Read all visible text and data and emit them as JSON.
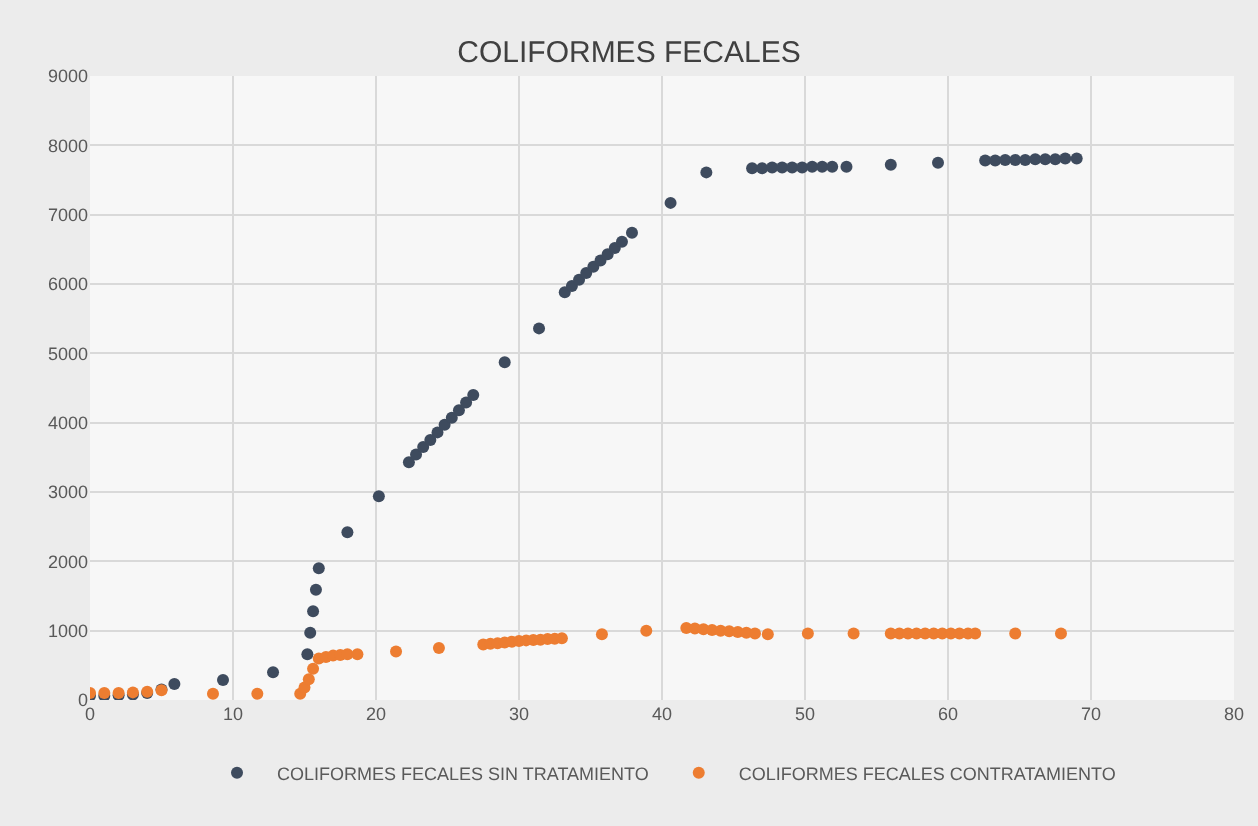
{
  "chart_data": {
    "type": "scatter",
    "title": "COLIFORMES FECALES",
    "xlim": [
      0,
      80
    ],
    "xticks": [
      0,
      10,
      20,
      30,
      40,
      50,
      60,
      70,
      80
    ],
    "ylim": [
      0,
      9000
    ],
    "yticks": [
      0,
      1000,
      2000,
      3000,
      4000,
      5000,
      6000,
      7000,
      8000,
      9000
    ],
    "grid": true,
    "legend": "bottom",
    "marker": "circle",
    "series": [
      {
        "name": "COLIFORMES FECALES SIN TRATAMIENTO",
        "color": "#3e4b5e",
        "x": [
          0,
          1,
          2,
          3,
          4,
          5,
          5.9,
          9.3,
          12.8,
          15.2,
          15.4,
          15.6,
          15.8,
          16,
          18,
          20.2,
          22.3,
          22.8,
          23.3,
          23.8,
          24.3,
          24.8,
          25.3,
          25.8,
          26.3,
          26.8,
          29,
          31.4,
          33.2,
          33.7,
          34.2,
          34.7,
          35.2,
          35.7,
          36.2,
          36.7,
          37.2,
          37.9,
          40.6,
          43.1,
          46.3,
          47,
          47.7,
          48.4,
          49.1,
          49.8,
          50.5,
          51.2,
          51.9,
          52.9,
          56,
          59.3,
          62.6,
          63.3,
          64,
          64.7,
          65.4,
          66.1,
          66.8,
          67.5,
          68.2,
          69
        ],
        "values": [
          60,
          60,
          70,
          80,
          100,
          150,
          230,
          290,
          400,
          660,
          970,
          1280,
          1590,
          1900,
          2420,
          2940,
          3430,
          3540,
          3650,
          3750,
          3860,
          3970,
          4070,
          4180,
          4290,
          4400,
          4870,
          5360,
          5880,
          5970,
          6060,
          6160,
          6250,
          6340,
          6430,
          6520,
          6610,
          6740,
          7170,
          7610,
          7670,
          7670,
          7680,
          7680,
          7680,
          7680,
          7690,
          7690,
          7690,
          7690,
          7720,
          7750,
          7780,
          7780,
          7790,
          7790,
          7790,
          7800,
          7800,
          7800,
          7810,
          7810
        ]
      },
      {
        "name": "COLIFORMES FECALES CONTRATAMIENTO",
        "color": "#ed7d31",
        "x": [
          0,
          1,
          2,
          3,
          4,
          5,
          8.6,
          11.7,
          14.7,
          15,
          15.3,
          15.6,
          16,
          16.5,
          17,
          17.5,
          18,
          18.7,
          21.4,
          24.4,
          27.5,
          28,
          28.5,
          29,
          29.5,
          30,
          30.5,
          31,
          31.5,
          32,
          32.5,
          33,
          35.8,
          38.9,
          41.7,
          42.3,
          42.9,
          43.5,
          44.1,
          44.7,
          45.3,
          45.9,
          46.5,
          47.4,
          50.2,
          53.4,
          56,
          56.6,
          57.2,
          57.8,
          58.4,
          59,
          59.6,
          60.2,
          60.8,
          61.4,
          61.9,
          64.7,
          67.9
        ],
        "values": [
          100,
          100,
          100,
          110,
          120,
          140,
          90,
          90,
          90,
          180,
          300,
          450,
          600,
          620,
          640,
          650,
          660,
          660,
          700,
          750,
          800,
          810,
          820,
          830,
          840,
          850,
          860,
          865,
          870,
          880,
          885,
          890,
          950,
          1000,
          1040,
          1030,
          1020,
          1010,
          1000,
          990,
          980,
          970,
          960,
          950,
          960,
          960,
          960,
          960,
          960,
          960,
          960,
          960,
          960,
          960,
          960,
          960,
          960,
          960,
          960
        ]
      }
    ]
  }
}
